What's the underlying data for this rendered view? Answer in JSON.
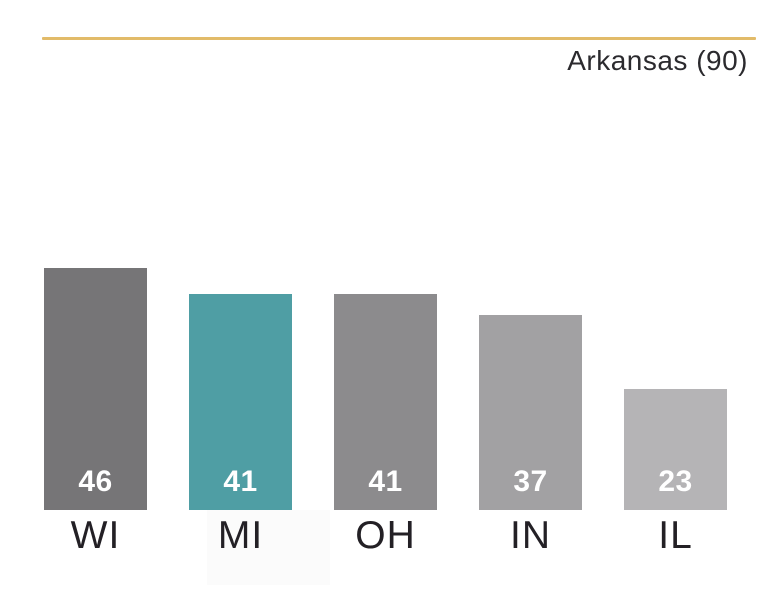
{
  "header": {
    "title": "Arkansas (90)",
    "rule_color": "#E2BB69"
  },
  "chart_data": {
    "type": "bar",
    "categories": [
      "WI",
      "MI",
      "OH",
      "IN",
      "IL"
    ],
    "values": [
      46,
      41,
      41,
      37,
      23
    ],
    "bar_colors": [
      "#767577",
      "#4F9EA4",
      "#8C8B8D",
      "#A2A1A3",
      "#B5B4B6"
    ],
    "highlighted_category": "MI",
    "highlight_color": "#4F9EA4",
    "annotation": "Arkansas (90)",
    "annotation_position": "top-right",
    "value_label_color": "#FFFFFF",
    "category_label_color": "#232025",
    "title": "",
    "xlabel": "",
    "ylabel": "",
    "ylim": [
      0,
      50
    ],
    "grid": false,
    "legend": false
  }
}
